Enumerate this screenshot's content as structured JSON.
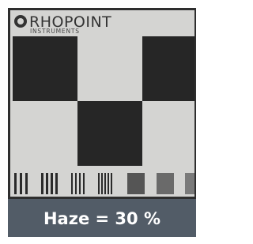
{
  "logo": {
    "name": "RHOPOINT",
    "subtitle": "INSTRUMENTS"
  },
  "caption": "Haze = 30 %"
}
